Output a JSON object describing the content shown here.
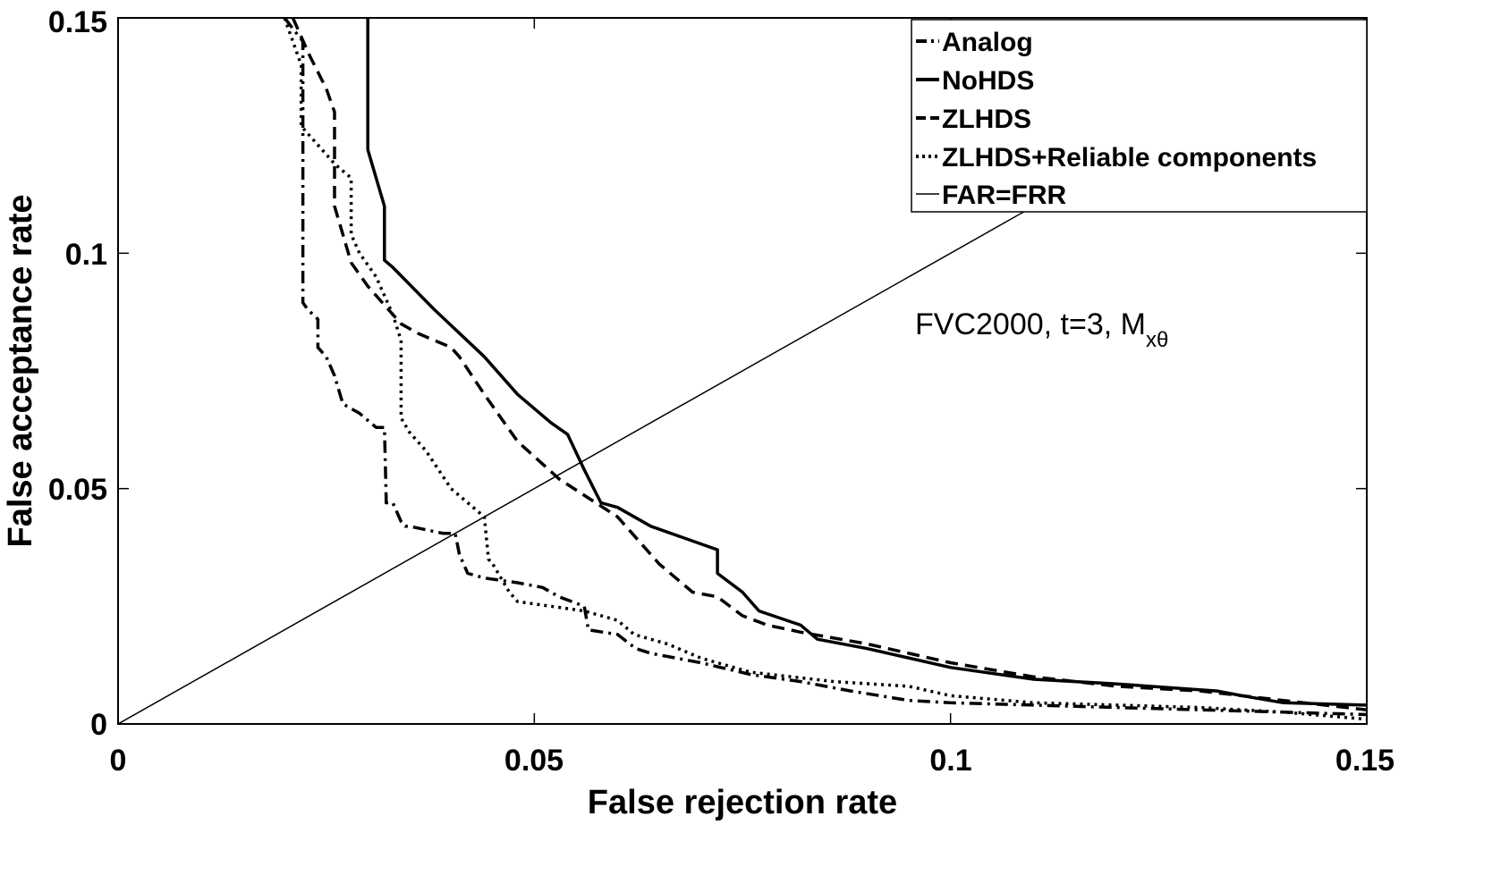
{
  "chart_data": {
    "type": "line",
    "title": "",
    "xlabel": "False rejection rate",
    "ylabel": "False acceptance rate",
    "xlim": [
      0,
      0.15
    ],
    "ylim": [
      0,
      0.15
    ],
    "xticks": [
      0,
      0.05,
      0.1,
      0.15
    ],
    "yticks": [
      0,
      0.05,
      0.1,
      0.15
    ],
    "xtick_labels": [
      "0",
      "0.05",
      "0.1",
      "0.15"
    ],
    "ytick_labels": [
      "0",
      "0.05",
      "0.1",
      "0.15"
    ],
    "grid": false,
    "legend_position": "top-right",
    "annotation": {
      "main": "FVC2000, t=3, M",
      "subscript": "xθ",
      "x": 0.096,
      "y": 0.084
    },
    "series": [
      {
        "name": "Analog",
        "style": "dashdot",
        "x": [
          0.02,
          0.0222,
          0.0222,
          0.0228,
          0.024,
          0.024,
          0.025,
          0.026,
          0.027,
          0.029,
          0.031,
          0.032,
          0.0322,
          0.0322,
          0.033,
          0.034,
          0.0345,
          0.035,
          0.039,
          0.0405,
          0.041,
          0.042,
          0.044,
          0.048,
          0.051,
          0.053,
          0.056,
          0.0565,
          0.06,
          0.0622,
          0.064,
          0.07,
          0.076,
          0.082,
          0.088,
          0.095,
          0.1,
          0.11,
          0.12,
          0.13,
          0.14,
          0.15
        ],
        "y": [
          0.15,
          0.145,
          0.0895,
          0.088,
          0.086,
          0.08,
          0.078,
          0.074,
          0.068,
          0.066,
          0.063,
          0.063,
          0.048,
          0.047,
          0.047,
          0.043,
          0.042,
          0.042,
          0.0405,
          0.0405,
          0.036,
          0.032,
          0.031,
          0.03,
          0.029,
          0.027,
          0.025,
          0.02,
          0.019,
          0.016,
          0.015,
          0.013,
          0.0105,
          0.009,
          0.007,
          0.005,
          0.0045,
          0.004,
          0.0035,
          0.003,
          0.0025,
          0.002
        ]
      },
      {
        "name": "NoHDS",
        "style": "solid-thick",
        "x": [
          0.03,
          0.03,
          0.032,
          0.032,
          0.033,
          0.038,
          0.044,
          0.048,
          0.052,
          0.054,
          0.056,
          0.058,
          0.06,
          0.064,
          0.072,
          0.072,
          0.075,
          0.077,
          0.082,
          0.084,
          0.09,
          0.1,
          0.11,
          0.12,
          0.132,
          0.135,
          0.14,
          0.15
        ],
        "y": [
          0.15,
          0.122,
          0.11,
          0.0985,
          0.097,
          0.088,
          0.078,
          0.07,
          0.064,
          0.0615,
          0.054,
          0.047,
          0.046,
          0.042,
          0.037,
          0.032,
          0.028,
          0.024,
          0.021,
          0.018,
          0.016,
          0.012,
          0.0095,
          0.0085,
          0.007,
          0.006,
          0.0045,
          0.004
        ]
      },
      {
        "name": "ZLHDS",
        "style": "dashed",
        "x": [
          0.021,
          0.023,
          0.025,
          0.026,
          0.026,
          0.027,
          0.028,
          0.03,
          0.032,
          0.034,
          0.036,
          0.04,
          0.041,
          0.044,
          0.048,
          0.053,
          0.06,
          0.065,
          0.069,
          0.072,
          0.075,
          0.078,
          0.082,
          0.09,
          0.1,
          0.11,
          0.12,
          0.13,
          0.14,
          0.15
        ],
        "y": [
          0.15,
          0.142,
          0.135,
          0.13,
          0.11,
          0.104,
          0.098,
          0.093,
          0.089,
          0.085,
          0.083,
          0.08,
          0.078,
          0.07,
          0.06,
          0.052,
          0.044,
          0.034,
          0.028,
          0.027,
          0.023,
          0.021,
          0.0195,
          0.017,
          0.013,
          0.01,
          0.008,
          0.007,
          0.005,
          0.003
        ]
      },
      {
        "name": "ZLHDS+Reliable components",
        "style": "dotted",
        "x": [
          0.02,
          0.022,
          0.022,
          0.024,
          0.026,
          0.028,
          0.028,
          0.029,
          0.031,
          0.033,
          0.034,
          0.034,
          0.035,
          0.037,
          0.04,
          0.042,
          0.044,
          0.0445,
          0.045,
          0.046,
          0.047,
          0.048,
          0.05,
          0.056,
          0.06,
          0.062,
          0.066,
          0.07,
          0.076,
          0.086,
          0.095,
          0.1,
          0.11,
          0.12,
          0.13,
          0.14,
          0.15
        ],
        "y": [
          0.15,
          0.14,
          0.127,
          0.123,
          0.119,
          0.116,
          0.104,
          0.1,
          0.095,
          0.087,
          0.0815,
          0.065,
          0.062,
          0.058,
          0.05,
          0.047,
          0.044,
          0.035,
          0.034,
          0.031,
          0.028,
          0.026,
          0.0255,
          0.024,
          0.022,
          0.019,
          0.017,
          0.014,
          0.011,
          0.009,
          0.008,
          0.006,
          0.0045,
          0.004,
          0.0035,
          0.0025,
          0.001
        ]
      },
      {
        "name": "FAR=FRR",
        "style": "solid-thin",
        "x": [
          0,
          0.15
        ],
        "y": [
          0,
          0.15
        ]
      }
    ]
  }
}
